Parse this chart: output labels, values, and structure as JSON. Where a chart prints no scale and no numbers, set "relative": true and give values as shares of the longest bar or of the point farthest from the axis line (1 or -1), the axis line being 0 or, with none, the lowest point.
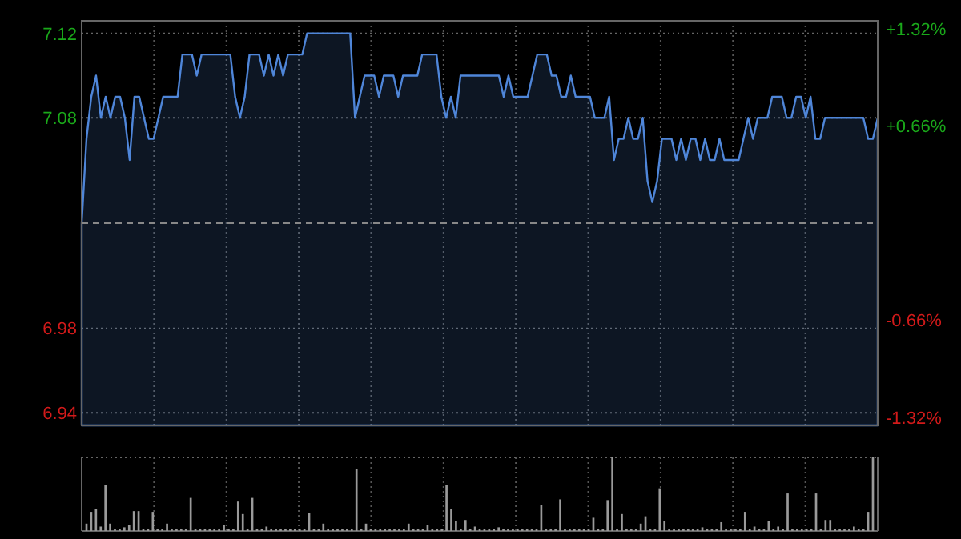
{
  "chart_data": [
    {
      "type": "area",
      "grid": true,
      "categories": [
        null,
        null,
        null,
        null,
        null,
        null,
        null,
        null,
        null,
        null,
        null,
        null,
        null,
        null,
        null,
        null,
        null,
        null,
        null,
        null,
        null,
        null,
        null,
        null,
        null,
        null,
        null,
        null,
        null,
        null,
        null,
        null,
        null,
        null,
        null,
        null,
        null,
        null,
        null,
        null,
        null,
        null,
        null,
        null,
        null,
        null,
        null,
        null,
        null,
        null,
        null,
        null,
        null,
        null,
        null,
        null,
        null,
        null,
        null,
        null,
        null,
        null,
        null,
        null,
        null,
        null,
        null,
        null,
        null,
        null,
        null,
        null,
        null,
        null,
        null,
        null,
        null,
        null,
        null,
        null,
        null,
        null,
        null,
        null,
        null,
        null,
        null,
        null,
        null,
        null,
        null,
        null,
        null,
        null,
        null,
        null,
        null,
        null,
        null,
        null,
        null,
        null,
        null,
        null,
        null,
        null,
        null,
        null,
        null,
        null,
        null,
        null,
        null,
        null,
        null,
        null,
        null,
        null,
        null,
        null,
        null,
        null,
        null,
        null,
        null,
        null,
        null,
        null,
        null,
        null,
        null,
        null,
        null,
        null,
        null,
        null,
        null,
        null,
        null,
        null,
        null,
        null,
        null,
        null,
        null,
        null,
        null,
        null,
        null,
        null,
        null,
        null,
        null,
        null,
        null,
        null,
        null,
        null,
        null,
        null,
        null,
        null,
        null,
        null,
        null,
        null,
        null
      ],
      "series": [
        {
          "color": "#4f86d9",
          "values": [
            7.03,
            7.07,
            7.09,
            7.1,
            7.08,
            7.09,
            7.08,
            7.09,
            7.09,
            7.08,
            7.06,
            7.09,
            7.09,
            7.08,
            7.07,
            7.07,
            7.08,
            7.09,
            7.09,
            7.09,
            7.09,
            7.11,
            7.11,
            7.11,
            7.1,
            7.11,
            7.11,
            7.11,
            7.11,
            7.11,
            7.11,
            7.11,
            7.09,
            7.08,
            7.09,
            7.11,
            7.11,
            7.11,
            7.1,
            7.11,
            7.1,
            7.11,
            7.1,
            7.11,
            7.11,
            7.11,
            7.11,
            7.12,
            7.12,
            7.12,
            7.12,
            7.12,
            7.12,
            7.12,
            7.12,
            7.12,
            7.12,
            7.08,
            7.09,
            7.1,
            7.1,
            7.1,
            7.09,
            7.1,
            7.1,
            7.1,
            7.09,
            7.1,
            7.1,
            7.1,
            7.1,
            7.11,
            7.11,
            7.11,
            7.11,
            7.09,
            7.08,
            7.09,
            7.08,
            7.1,
            7.1,
            7.1,
            7.1,
            7.1,
            7.1,
            7.1,
            7.1,
            7.1,
            7.09,
            7.1,
            7.09,
            7.09,
            7.09,
            7.09,
            7.1,
            7.11,
            7.11,
            7.11,
            7.1,
            7.1,
            7.09,
            7.09,
            7.1,
            7.09,
            7.09,
            7.09,
            7.09,
            7.08,
            7.08,
            7.08,
            7.09,
            7.06,
            7.07,
            7.07,
            7.08,
            7.07,
            7.07,
            7.08,
            7.05,
            7.04,
            7.05,
            7.07,
            7.07,
            7.07,
            7.06,
            7.07,
            7.06,
            7.07,
            7.07,
            7.06,
            7.07,
            7.06,
            7.06,
            7.07,
            7.06,
            7.06,
            7.06,
            7.06,
            7.07,
            7.08,
            7.07,
            7.08,
            7.08,
            7.08,
            7.09,
            7.09,
            7.09,
            7.08,
            7.08,
            7.09,
            7.09,
            7.08,
            7.09,
            7.07,
            7.07,
            7.08,
            7.08,
            7.08,
            7.08,
            7.08,
            7.08,
            7.08,
            7.08,
            7.08,
            7.07,
            7.07,
            7.08
          ]
        }
      ],
      "ylim": [
        6.934,
        7.126
      ],
      "yticks": [
        7.12,
        7.08,
        6.98,
        6.94
      ],
      "y2lim": [
        -1.374,
        1.374
      ],
      "y2ticks": [
        {
          "value": 1.32,
          "label": "+1.32%"
        },
        {
          "value": 0.66,
          "label": "+0.66%"
        },
        {
          "value": -0.66,
          "label": "-0.66%"
        },
        {
          "value": -1.32,
          "label": "-1.32%"
        }
      ],
      "ref_lines": [
        {
          "axis": "y",
          "value": 7.03,
          "line_style": "dashed"
        }
      ]
    },
    {
      "type": "bar",
      "relative": true,
      "grid": true,
      "color": "#9a9a9a",
      "categories": [
        null,
        null,
        null,
        null,
        null,
        null,
        null,
        null,
        null,
        null,
        null,
        null,
        null,
        null,
        null,
        null,
        null,
        null,
        null,
        null,
        null,
        null,
        null,
        null,
        null,
        null,
        null,
        null,
        null,
        null,
        null,
        null,
        null,
        null,
        null,
        null,
        null,
        null,
        null,
        null,
        null,
        null,
        null,
        null,
        null,
        null,
        null,
        null,
        null,
        null,
        null,
        null,
        null,
        null,
        null,
        null,
        null,
        null,
        null,
        null,
        null,
        null,
        null,
        null,
        null,
        null,
        null,
        null,
        null,
        null,
        null,
        null,
        null,
        null,
        null,
        null,
        null,
        null,
        null,
        null,
        null,
        null,
        null,
        null,
        null,
        null,
        null,
        null,
        null,
        null,
        null,
        null,
        null,
        null,
        null,
        null,
        null,
        null,
        null,
        null,
        null,
        null,
        null,
        null,
        null,
        null,
        null,
        null,
        null,
        null,
        null,
        null,
        null,
        null,
        null,
        null,
        null,
        null,
        null,
        null,
        null,
        null,
        null,
        null,
        null,
        null,
        null,
        null,
        null,
        null,
        null,
        null,
        null,
        null,
        null,
        null,
        null,
        null,
        null,
        null,
        null,
        null,
        null,
        null,
        null,
        null,
        null,
        null,
        null,
        null,
        null,
        null,
        null,
        null,
        null,
        null,
        null,
        null,
        null,
        null,
        null,
        null,
        null,
        null,
        null,
        null,
        null
      ],
      "values": [
        0.1,
        0.26,
        0.3,
        0.06,
        0.63,
        0.1,
        0.03,
        0.03,
        0.05,
        0.08,
        0.27,
        0.27,
        0.03,
        0.03,
        0.26,
        0.03,
        0.03,
        0.1,
        0.03,
        0.03,
        0.03,
        0.03,
        0.45,
        0.03,
        0.03,
        0.03,
        0.03,
        0.03,
        0.03,
        0.08,
        0.03,
        0.03,
        0.4,
        0.23,
        0.03,
        0.45,
        0.03,
        0.03,
        0.06,
        0.03,
        0.03,
        0.03,
        0.03,
        0.03,
        0.03,
        0.03,
        0.03,
        0.24,
        0.03,
        0.03,
        0.1,
        0.03,
        0.03,
        0.03,
        0.03,
        0.03,
        0.03,
        0.84,
        0.03,
        0.1,
        0.03,
        0.03,
        0.03,
        0.03,
        0.03,
        0.03,
        0.03,
        0.03,
        0.1,
        0.03,
        0.03,
        0.03,
        0.08,
        0.03,
        0.03,
        0.03,
        0.63,
        0.3,
        0.14,
        0.03,
        0.15,
        0.03,
        0.06,
        0.03,
        0.03,
        0.03,
        0.03,
        0.05,
        0.03,
        0.03,
        0.03,
        0.03,
        0.03,
        0.03,
        0.03,
        0.03,
        0.35,
        0.03,
        0.03,
        0.03,
        0.43,
        0.03,
        0.03,
        0.03,
        0.03,
        0.03,
        0.03,
        0.18,
        0.03,
        0.03,
        0.42,
        1,
        0.03,
        0.23,
        0.03,
        0.03,
        0.03,
        0.1,
        0.2,
        0.03,
        0.03,
        0.58,
        0.14,
        0.03,
        0.03,
        0.03,
        0.03,
        0.03,
        0.03,
        0.03,
        0.05,
        0.03,
        0.03,
        0.03,
        0.12,
        0.03,
        0.03,
        0.03,
        0.03,
        0.26,
        0.03,
        0.06,
        0.03,
        0.03,
        0.14,
        0.03,
        0.06,
        0.03,
        0.51,
        0.03,
        0.03,
        0.03,
        0.03,
        0.03,
        0.51,
        0.03,
        0.15,
        0.15,
        0.03,
        0.03,
        0.03,
        0.03,
        0.06,
        0.03,
        0.03,
        0.26,
        1
      ]
    }
  ]
}
